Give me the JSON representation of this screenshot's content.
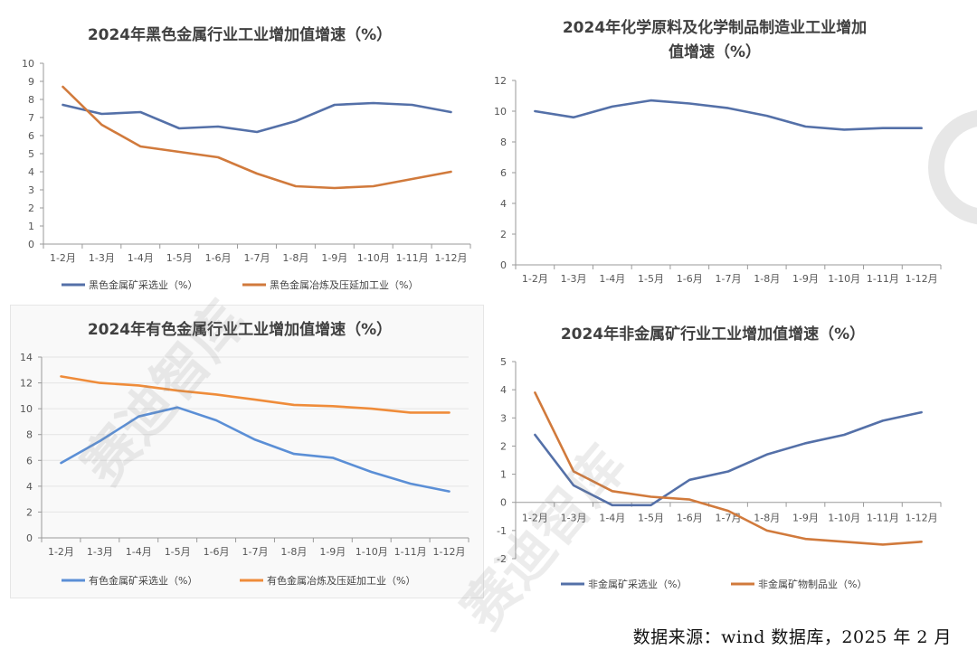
{
  "source_note": "数据来源：wind 数据库，2025 年 2 月",
  "watermark": "赛迪智库",
  "colors": {
    "blue": "#5470a8",
    "orange": "#d17a3c",
    "blue_light": "#5b8fd6",
    "orange_light": "#ef8c3a"
  },
  "chart_data": [
    {
      "type": "line",
      "title": "2024年黑色金属行业工业增加值增速（%）",
      "categories": [
        "1-2月",
        "1-3月",
        "1-4月",
        "1-5月",
        "1-6月",
        "1-7月",
        "1-8月",
        "1-9月",
        "1-10月",
        "1-11月",
        "1-12月"
      ],
      "ylim": [
        0,
        10
      ],
      "yticks": [
        0,
        1,
        2,
        3,
        4,
        5,
        6,
        7,
        8,
        9,
        10
      ],
      "series": [
        {
          "name": "黑色金属矿采选业（%）",
          "values": [
            7.7,
            7.2,
            7.3,
            6.4,
            6.5,
            6.2,
            6.8,
            7.7,
            7.8,
            7.7,
            7.3
          ]
        },
        {
          "name": "黑色金属冶炼及压延加工业（%）",
          "values": [
            8.7,
            6.6,
            5.4,
            5.1,
            4.8,
            3.9,
            3.2,
            3.1,
            3.2,
            3.6,
            4.0
          ]
        }
      ]
    },
    {
      "type": "line",
      "title": "2024年化学原料及化学制品制造业工业增加值增速（%）",
      "title_lines": [
        "2024年化学原料及化学制品制造业工业增加",
        "值增速（%）"
      ],
      "categories": [
        "1-2月",
        "1-3月",
        "1-4月",
        "1-5月",
        "1-6月",
        "1-7月",
        "1-8月",
        "1-9月",
        "1-10月",
        "1-11月",
        "1-12月"
      ],
      "ylim": [
        0,
        12
      ],
      "yticks": [
        0,
        2,
        4,
        6,
        8,
        10,
        12
      ],
      "series": [
        {
          "name": "化学原料及化学制品制造业",
          "values": [
            10.0,
            9.6,
            10.3,
            10.7,
            10.5,
            10.2,
            9.7,
            9.0,
            8.8,
            8.9,
            8.9
          ]
        }
      ]
    },
    {
      "type": "line",
      "title": "2024年有色金属行业工业增加值增速（%）",
      "categories": [
        "1-2月",
        "1-3月",
        "1-4月",
        "1-5月",
        "1-6月",
        "1-7月",
        "1-8月",
        "1-9月",
        "1-10月",
        "1-11月",
        "1-12月"
      ],
      "ylim": [
        0,
        14
      ],
      "yticks": [
        0,
        2,
        4,
        6,
        8,
        10,
        12,
        14
      ],
      "series": [
        {
          "name": "有色金属矿采选业（%）",
          "values": [
            5.8,
            7.5,
            9.4,
            10.1,
            9.1,
            7.6,
            6.5,
            6.2,
            5.1,
            4.2,
            3.6
          ]
        },
        {
          "name": "有色金属冶炼及压延加工业（%）",
          "values": [
            12.5,
            12.0,
            11.8,
            11.4,
            11.1,
            10.7,
            10.3,
            10.2,
            10.0,
            9.7,
            9.7
          ]
        }
      ]
    },
    {
      "type": "line",
      "title": "2024年非金属矿行业工业增加值增速（%）",
      "categories": [
        "1-2月",
        "1-3月",
        "1-4月",
        "1-5月",
        "1-6月",
        "1-7月",
        "1-8月",
        "1-9月",
        "1-10月",
        "1-11月",
        "1-12月"
      ],
      "ylim": [
        -2,
        5
      ],
      "yticks": [
        -2,
        -1,
        0,
        1,
        2,
        3,
        4,
        5
      ],
      "series": [
        {
          "name": "非金属矿采选业（%）",
          "values": [
            2.4,
            0.6,
            -0.1,
            -0.1,
            0.8,
            1.1,
            1.7,
            2.1,
            2.4,
            2.9,
            3.2
          ]
        },
        {
          "name": "非金属矿物制品业（%）",
          "values": [
            3.9,
            1.1,
            0.4,
            0.2,
            0.1,
            -0.3,
            -1.0,
            -1.3,
            -1.4,
            -1.5,
            -1.4
          ]
        }
      ]
    }
  ]
}
